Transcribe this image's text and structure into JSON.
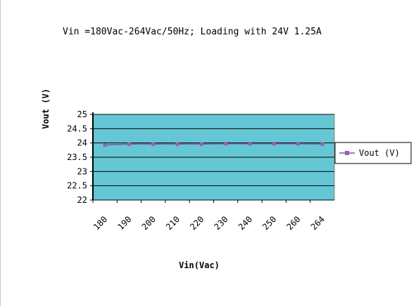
{
  "chart_data": {
    "type": "line",
    "title": "Vin =180Vac-264Vac/50Hz; Loading with 24V 1.25A",
    "xlabel": "Vin(Vac)",
    "ylabel": "Vout (V)",
    "categories": [
      "180",
      "190",
      "200",
      "210",
      "220",
      "230",
      "240",
      "250",
      "260",
      "264"
    ],
    "y_ticks": [
      "25",
      "24.5",
      "24",
      "23.5",
      "23",
      "22.5",
      "22"
    ],
    "ylim": [
      22,
      25
    ],
    "grid": true,
    "legend_position": "right",
    "series": [
      {
        "name": "Vout (V)",
        "values": [
          23.93,
          23.96,
          23.96,
          23.96,
          23.96,
          23.97,
          23.97,
          23.97,
          23.97,
          23.96
        ]
      }
    ]
  },
  "colors": {
    "plot_background": "#66c7d4",
    "series_line": "#6b5aa8",
    "marker": "#a05bb3",
    "gridline": "#000000"
  }
}
